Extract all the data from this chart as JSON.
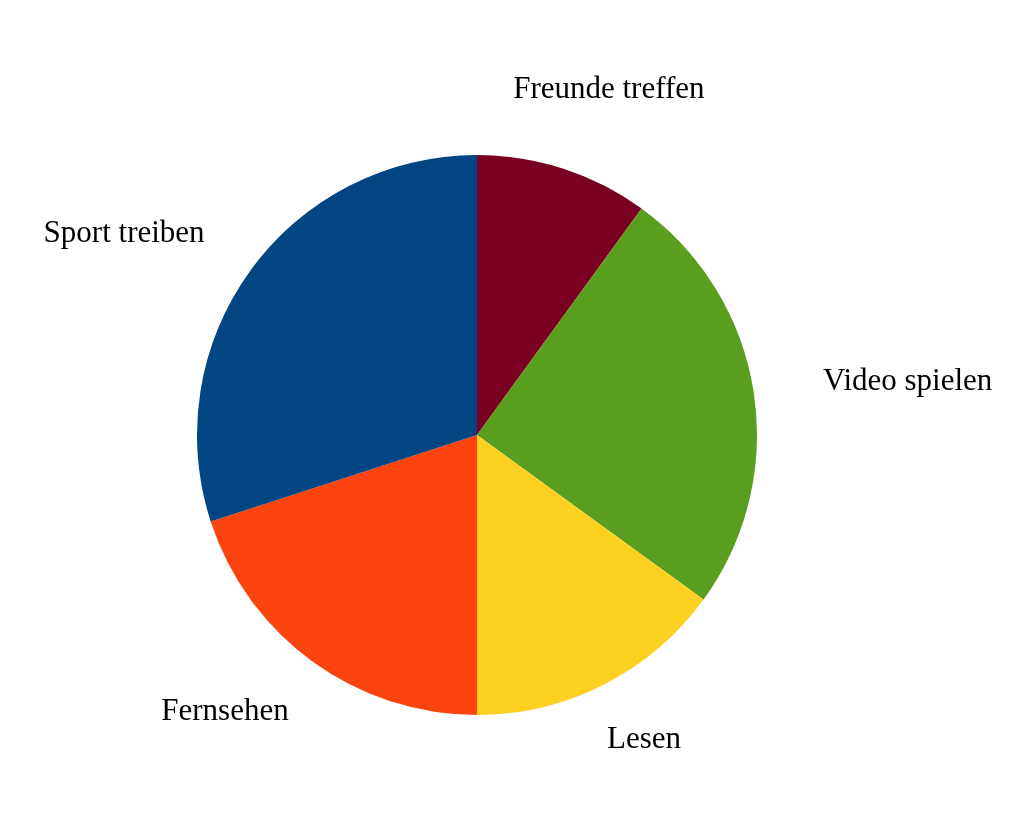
{
  "chart_data": {
    "type": "pie",
    "categories": [
      "Freunde treffen",
      "Video spielen",
      "Lesen",
      "Fernsehen",
      "Sport treiben"
    ],
    "values": [
      10,
      25,
      15,
      20,
      30
    ],
    "colors": [
      "#7a0022",
      "#5a9e1f",
      "#fdd022",
      "#fc440f",
      "#014582"
    ],
    "legend": false
  }
}
